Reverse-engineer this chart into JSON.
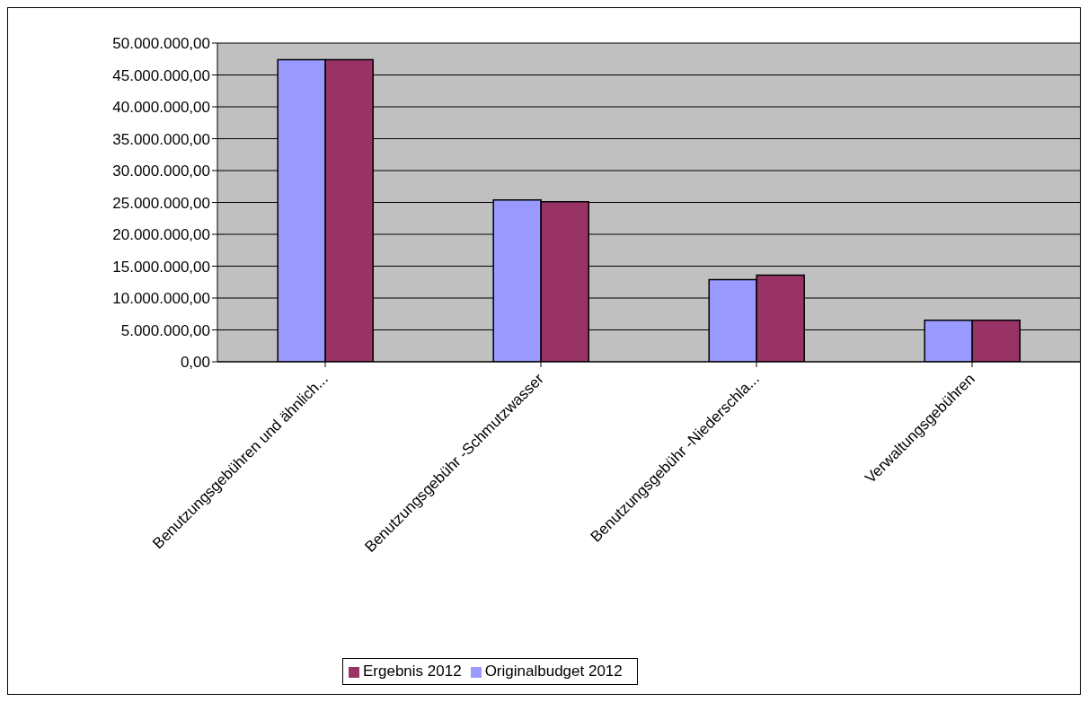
{
  "chart_data": {
    "type": "bar",
    "categories": [
      "Benutzungsgebühren und ähnlich...",
      "Benutzungsgebühr -Schmutzwasser",
      "Benutzungsgebühr -Niederschla...",
      "Verwaltungsgebühren"
    ],
    "series": [
      {
        "name": "Originalbudget 2012",
        "color": "#9999ff",
        "values": [
          47400000,
          25400000,
          12900000,
          6500000
        ]
      },
      {
        "name": "Ergebnis 2012",
        "color": "#993366",
        "values": [
          47400000,
          25100000,
          13600000,
          6500000
        ]
      }
    ],
    "ylim": [
      0,
      50000000
    ],
    "yticks": [
      {
        "value": 0,
        "label": "0,00"
      },
      {
        "value": 5000000,
        "label": "5.000.000,00"
      },
      {
        "value": 10000000,
        "label": "10.000.000,00"
      },
      {
        "value": 15000000,
        "label": "15.000.000,00"
      },
      {
        "value": 20000000,
        "label": "20.000.000,00"
      },
      {
        "value": 25000000,
        "label": "25.000.000,00"
      },
      {
        "value": 30000000,
        "label": "30.000.000,00"
      },
      {
        "value": 35000000,
        "label": "35.000.000,00"
      },
      {
        "value": 40000000,
        "label": "40.000.000,00"
      },
      {
        "value": 45000000,
        "label": "45.000.000,00"
      },
      {
        "value": 50000000,
        "label": "50.000.000,00"
      }
    ],
    "grid": "y",
    "legend": "bottom"
  }
}
